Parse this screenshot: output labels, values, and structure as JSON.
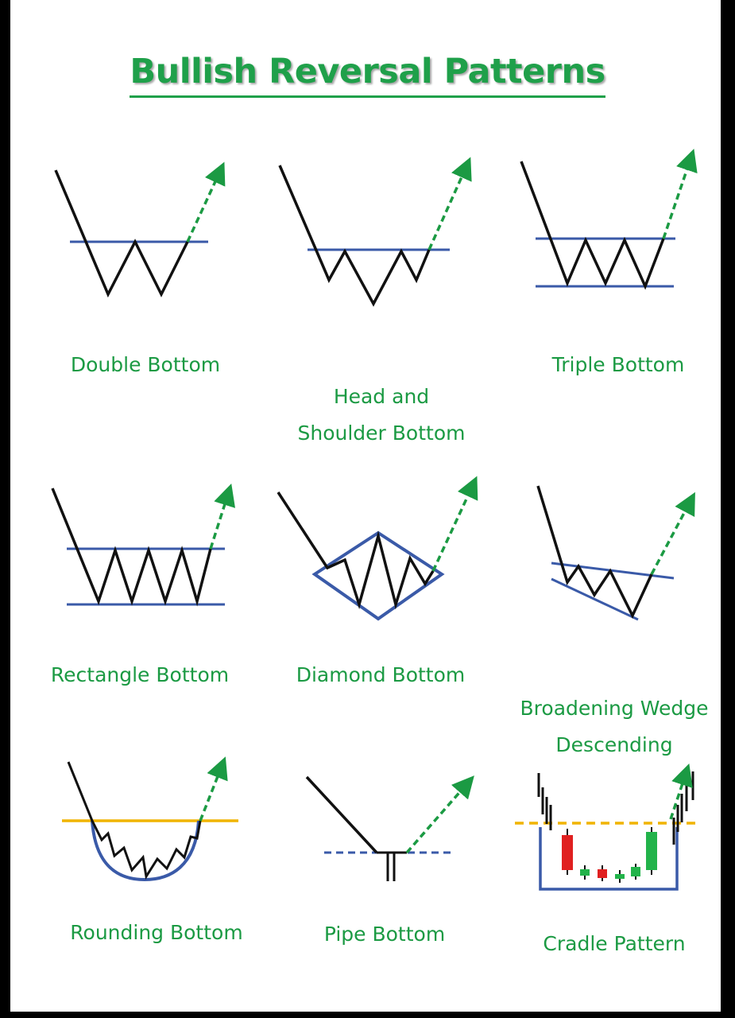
{
  "title": "Bullish Reversal Patterns",
  "colors": {
    "pattern_green": "#1b9a43",
    "line_blue": "#3a5aa8",
    "support_yellow": "#f0b400",
    "candle_red": "#e02020",
    "candle_green": "#22b34a",
    "price_black": "#111111"
  },
  "patterns": [
    {
      "label": "Double Bottom"
    },
    {
      "label": "Head and\nShoulder Bottom"
    },
    {
      "label": "Triple Bottom"
    },
    {
      "label": "Rectangle Bottom"
    },
    {
      "label": "Diamond Bottom"
    },
    {
      "label": "Broadening Wedge\nDescending"
    },
    {
      "label": "Rounding Bottom"
    },
    {
      "label": "Pipe Bottom"
    },
    {
      "label": "Cradle Pattern"
    }
  ]
}
